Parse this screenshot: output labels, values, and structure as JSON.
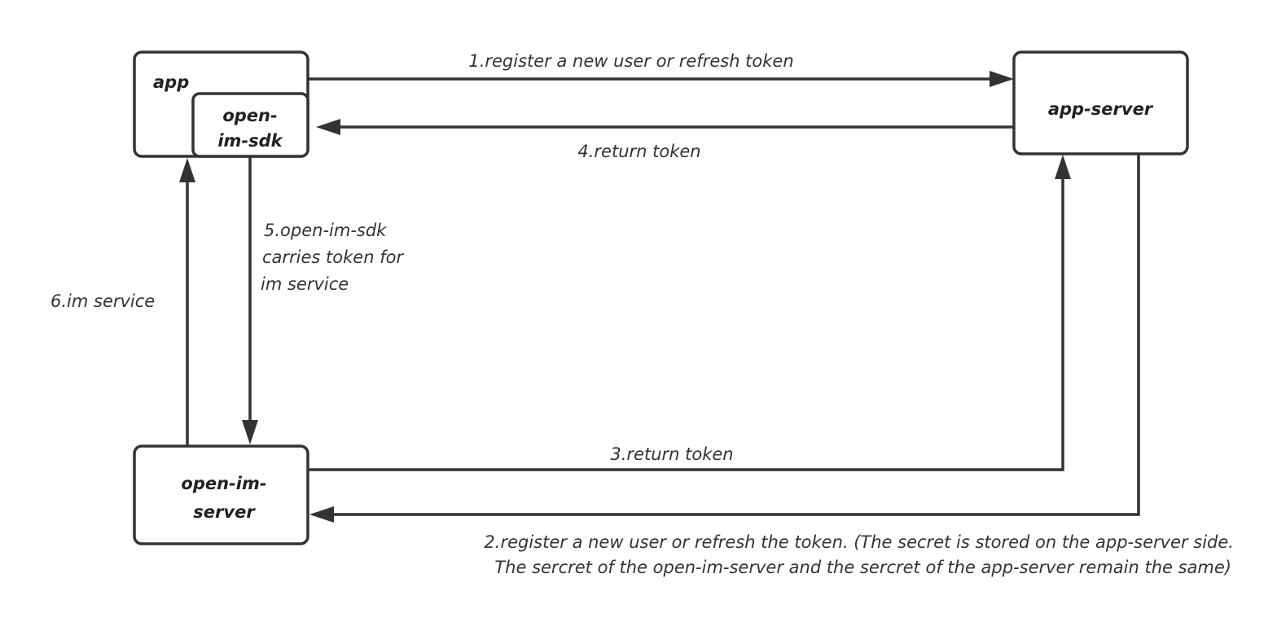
{
  "nodes": {
    "app": "app",
    "sdk": [
      "open-",
      "im-sdk"
    ],
    "app_server": "app-server",
    "im_server": [
      "open-im-",
      "server"
    ]
  },
  "edges": {
    "e1": "1.register a new user or refresh token",
    "e2": [
      "2.register a new user or refresh the token. (The secret is stored on the app-server side.",
      "The sercret of the open-im-server and the sercret of the app-server remain the same)"
    ],
    "e3": "3.return token",
    "e4": "4.return token",
    "e5": [
      "5.open-im-sdk",
      "carries token for",
      "im service"
    ],
    "e6": "6.im service"
  }
}
